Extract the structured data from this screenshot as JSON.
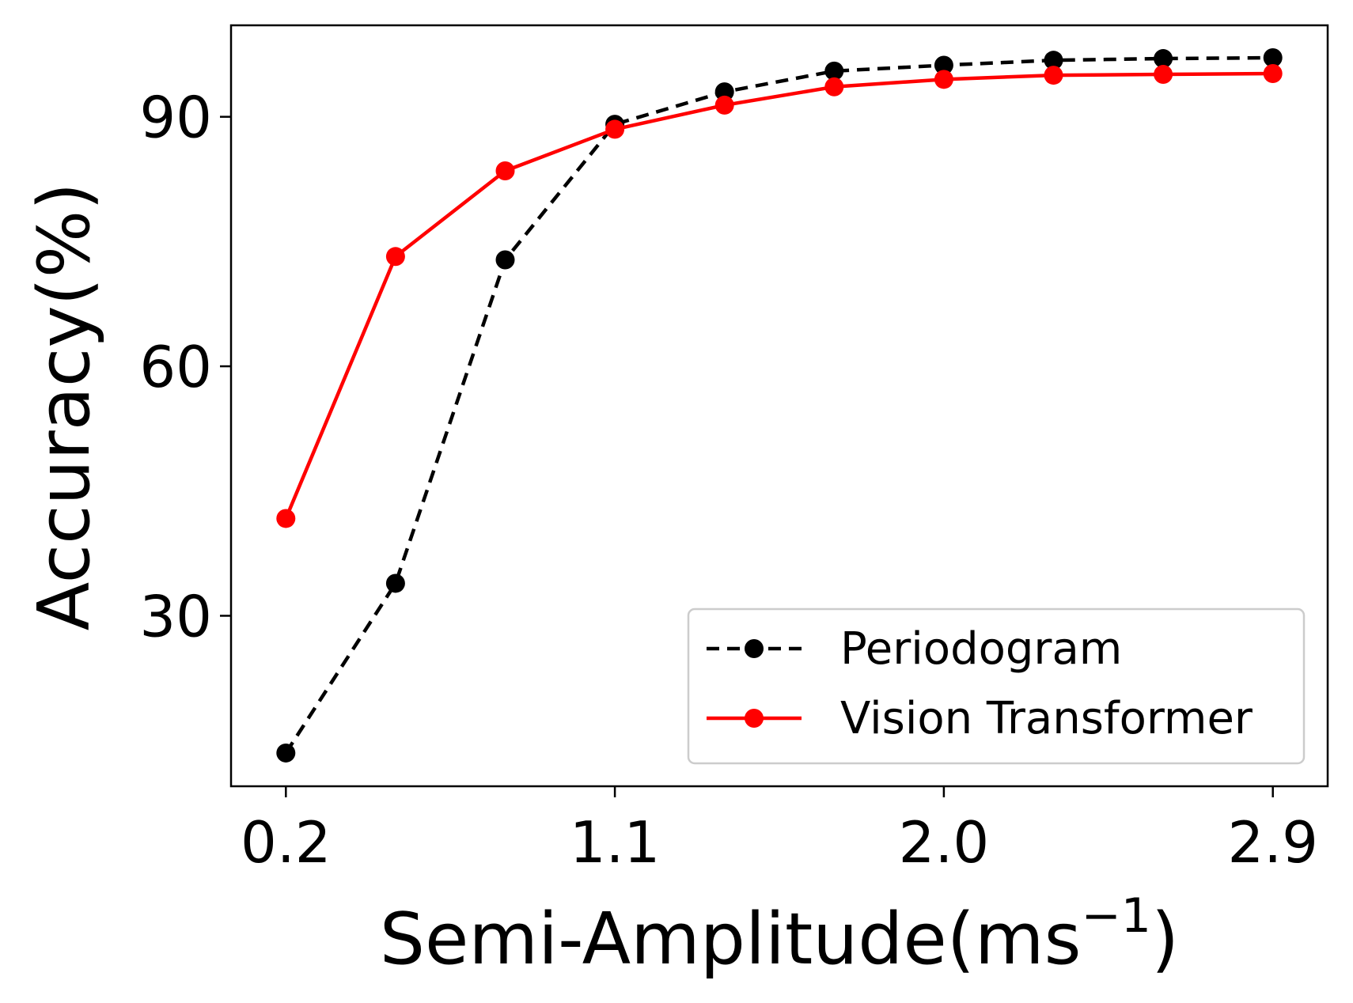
{
  "chart_data": {
    "type": "line",
    "xlabel": "Semi-Amplitude(ms",
    "xlabel_superscript": "−1",
    "xlabel_close": ")",
    "ylabel": "Accuracy(%)",
    "xlim": [
      0.05,
      3.05
    ],
    "ylim": [
      9.5,
      101
    ],
    "xticks": [
      0.2,
      1.1,
      2.0,
      2.9
    ],
    "xtick_labels": [
      "0.2",
      "1.1",
      "2.0",
      "2.9"
    ],
    "yticks": [
      30,
      60,
      90
    ],
    "ytick_labels": [
      "30",
      "60",
      "90"
    ],
    "x": [
      0.2,
      0.5,
      0.8,
      1.1,
      1.4,
      1.7,
      2.0,
      2.3,
      2.6,
      2.9
    ],
    "series": [
      {
        "name": "Periodogram",
        "color": "#000000",
        "line_style": "dashed",
        "values": [
          13.5,
          33.9,
          72.8,
          89.1,
          93.0,
          95.5,
          96.2,
          96.8,
          97.0,
          97.1
        ]
      },
      {
        "name": "Vision Transformer",
        "color": "#ff0000",
        "line_style": "solid",
        "values": [
          41.7,
          73.2,
          83.5,
          88.5,
          91.4,
          93.6,
          94.5,
          95.0,
          95.1,
          95.2
        ]
      }
    ],
    "legend_position": "lower-right"
  }
}
